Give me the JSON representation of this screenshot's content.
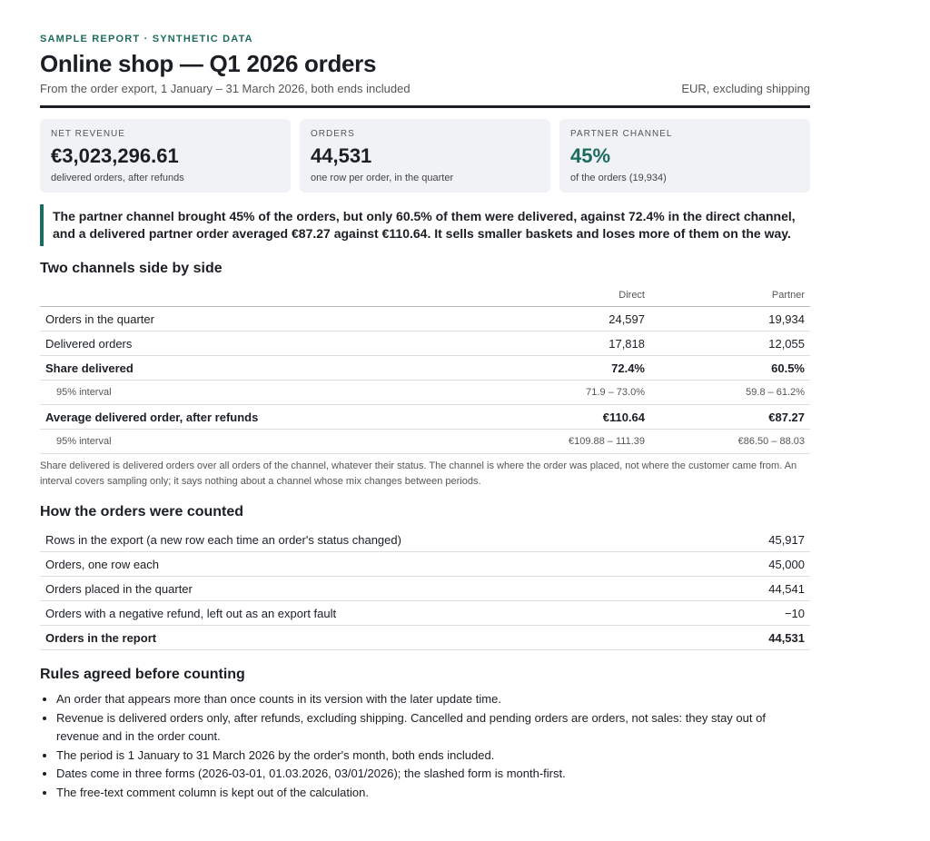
{
  "header": {
    "kicker": "SAMPLE REPORT · SYNTHETIC DATA",
    "title": "Online shop — Q1 2026 orders",
    "subtitle": "From the order export, 1 January – 31 March 2026, both ends included",
    "note": "EUR, excluding shipping"
  },
  "cards": [
    {
      "label": "NET REVENUE",
      "value": "€3,023,296.61",
      "note": "delivered orders, after refunds"
    },
    {
      "label": "ORDERS",
      "value": "44,531",
      "note": "one row per order, in the quarter"
    },
    {
      "label": "PARTNER CHANNEL",
      "value": "45%",
      "note": "of the orders (19,934)"
    }
  ],
  "callout": "The partner channel brought 45% of the orders, but only 60.5% of them were delivered, against 72.4% in the direct channel, and a delivered partner order averaged €87.27 against €110.64. It sells smaller baskets and loses more of them on the way.",
  "comparison": {
    "title": "Two channels side by side",
    "columns": [
      "Direct",
      "Partner"
    ],
    "rows": [
      [
        "Orders in the quarter",
        "24,597",
        "19,934"
      ],
      [
        "Delivered orders",
        "17,818",
        "12,055"
      ],
      [
        "Share delivered",
        "72.4%",
        "60.5%"
      ],
      [
        "95% interval",
        "71.9 – 73.0%",
        "59.8 – 61.2%"
      ],
      [
        "Average delivered order, after refunds",
        "€110.64",
        "€87.27"
      ],
      [
        "95% interval",
        "€109.88 – 111.39",
        "€86.50 – 88.03"
      ]
    ],
    "note": "Share delivered is delivered orders over all orders of the channel, whatever their status. The channel is where the order was placed, not where the customer came from. An interval covers sampling only; it says nothing about a channel whose mix changes between periods."
  },
  "counting": {
    "title": "How the orders were counted",
    "rows": [
      [
        "Rows in the export (a new row each time an order's status changed)",
        "45,917"
      ],
      [
        "Orders, one row each",
        "45,000"
      ],
      [
        "Orders placed in the quarter",
        "44,541"
      ],
      [
        "Orders with a negative refund, left out as an export fault",
        "−10"
      ],
      [
        "Orders in the report",
        "44,531"
      ]
    ]
  },
  "rules": {
    "title": "Rules agreed before counting",
    "items": [
      "An order that appears more than once counts in its version with the later update time.",
      "Revenue is delivered orders only, after refunds, excluding shipping. Cancelled and pending orders are orders, not sales: they stay out of revenue and in the order count.",
      "The period is 1 January to 31 March 2026 by the order's month, both ends included.",
      "Dates come in three forms (2026-03-01, 01.03.2026, 03/01/2026); the slashed form is month-first.",
      "The free-text comment column is kept out of the calculation."
    ]
  }
}
